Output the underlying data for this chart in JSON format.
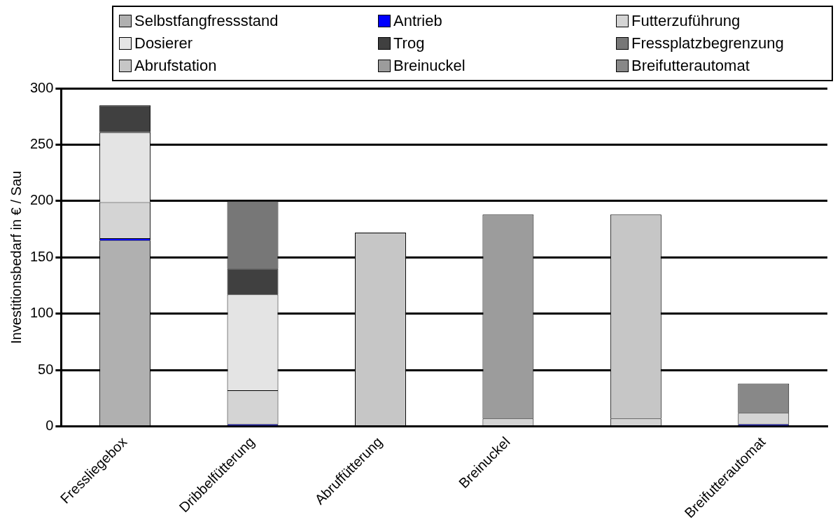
{
  "chart_data": {
    "type": "bar",
    "stacked": true,
    "ylabel": "Investitionsbedarf in € / Sau",
    "categories": [
      "Fressliegebox",
      "Dribbelfütterung",
      "Abruffütterung",
      "Breinuckel",
      null,
      "Breifutterautomat"
    ],
    "ylim": [
      0,
      300
    ],
    "yticks": [
      0,
      50,
      100,
      150,
      200,
      250,
      300
    ],
    "grid": "y",
    "legend": "top",
    "series": [
      {
        "name": "Selbstfangfressstand",
        "color": "#b0b0b0",
        "values": [
          165,
          null,
          null,
          null,
          null,
          null
        ]
      },
      {
        "name": "Antrieb",
        "color": "#0000ff",
        "values": [
          2,
          2,
          null,
          null,
          null,
          2
        ]
      },
      {
        "name": "Futterzuführung",
        "color": "#d4d4d4",
        "values": [
          32,
          30,
          null,
          7,
          7,
          10
        ]
      },
      {
        "name": "Dosierer",
        "color": "#e4e4e4",
        "values": [
          62,
          85,
          null,
          null,
          null,
          null
        ]
      },
      {
        "name": "Trog",
        "color": "#404040",
        "values": [
          24,
          23,
          null,
          null,
          null,
          null
        ]
      },
      {
        "name": "Fressplatzbegrenzung",
        "color": "#777777",
        "values": [
          null,
          60,
          null,
          null,
          null,
          null
        ]
      },
      {
        "name": "Abrufstation",
        "color": "#c6c6c6",
        "values": [
          null,
          null,
          172,
          null,
          181,
          null
        ]
      },
      {
        "name": "Breinuckel",
        "color": "#9c9c9c",
        "values": [
          null,
          null,
          null,
          181,
          null,
          null
        ]
      },
      {
        "name": "Breifutterautomat",
        "color": "#888888",
        "values": [
          null,
          null,
          null,
          null,
          null,
          26
        ]
      }
    ]
  }
}
